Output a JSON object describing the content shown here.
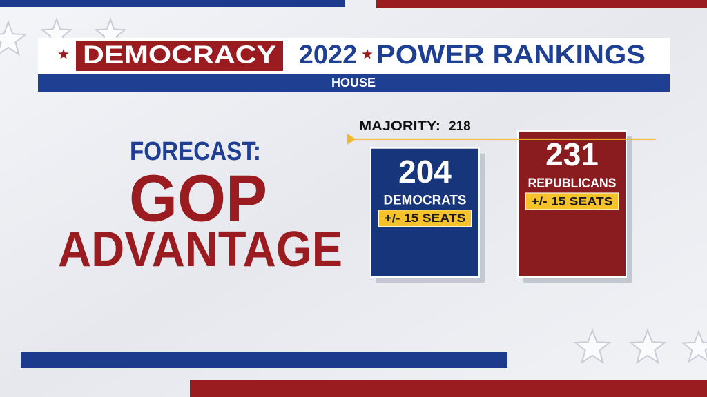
{
  "header": {
    "brand": "DEMOCRACY",
    "year": "2022",
    "title": "POWER RANKINGS",
    "subtitle": "HOUSE"
  },
  "forecast": {
    "label": "FORECAST:",
    "line1": "GOP",
    "line2": "ADVANTAGE"
  },
  "majority": {
    "label": "MAJORITY:",
    "value": 218
  },
  "parties": [
    {
      "name": "DEMOCRATS",
      "seats": 204,
      "margin": "+/- 15 SEATS",
      "color": "#17357a"
    },
    {
      "name": "REPUBLICANS",
      "seats": 231,
      "margin": "+/- 15 SEATS",
      "color": "#8a1b1e"
    }
  ]
}
